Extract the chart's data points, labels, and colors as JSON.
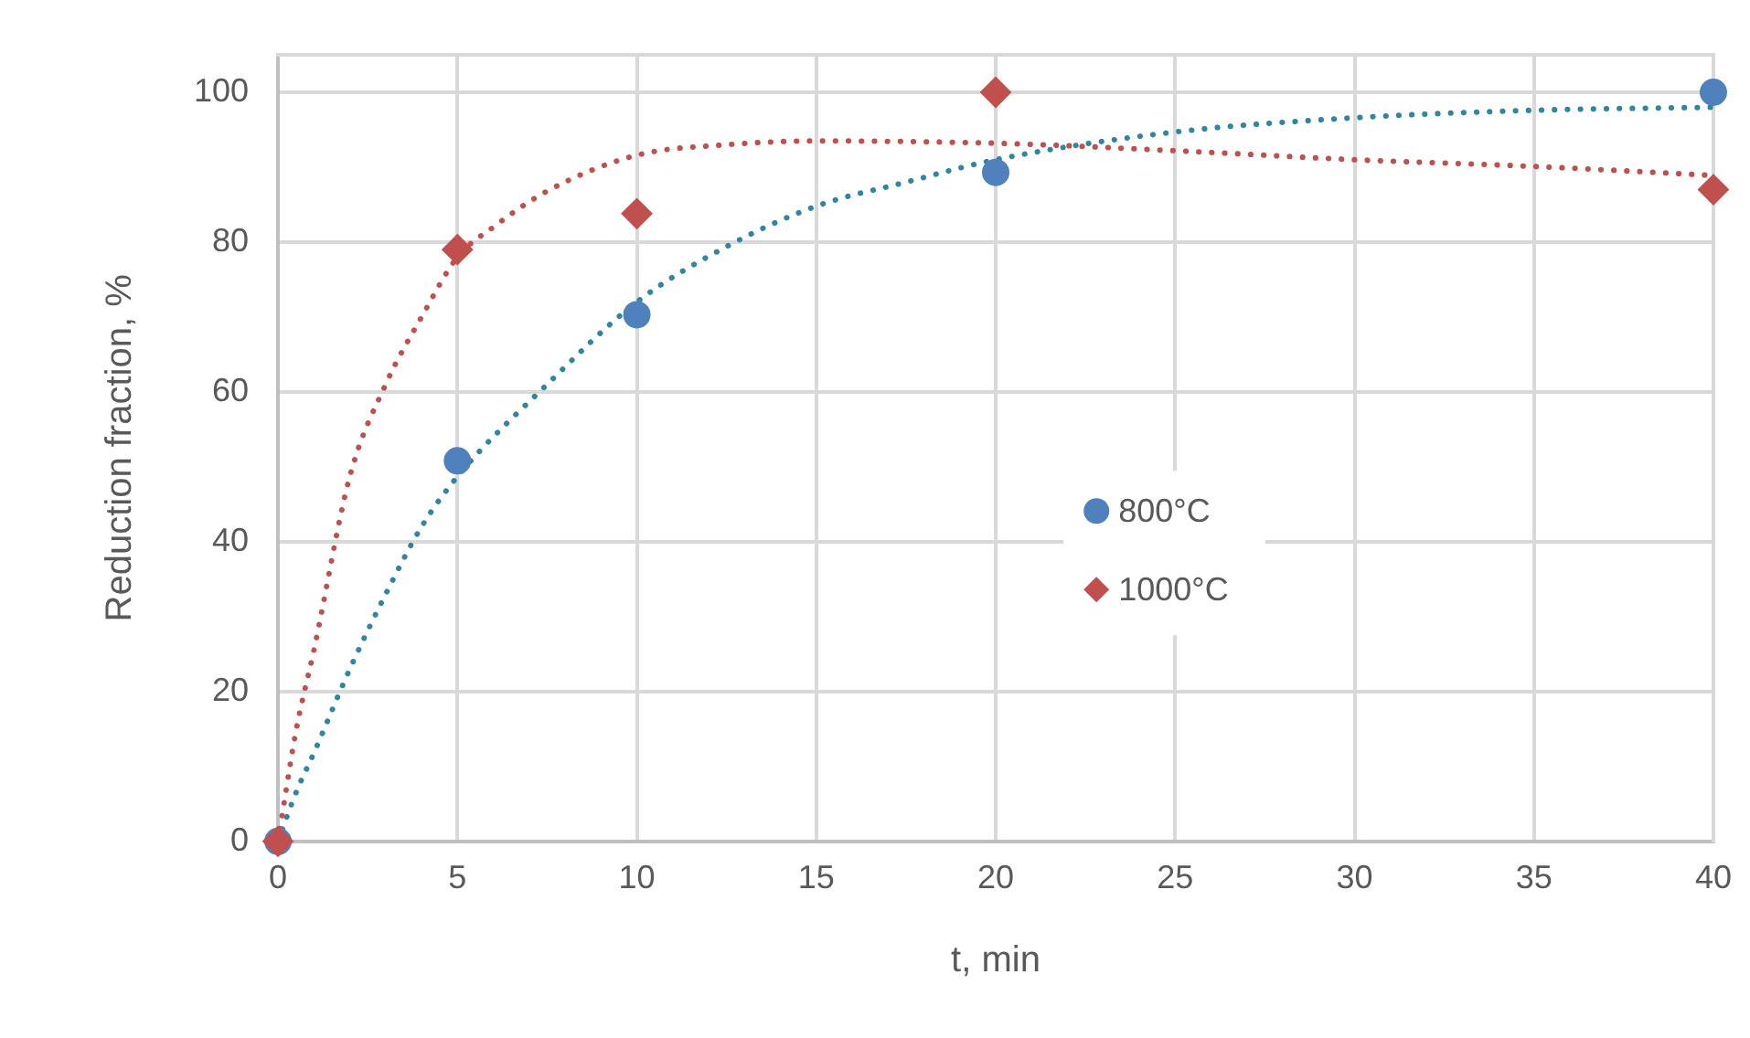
{
  "chart_data": {
    "type": "scatter",
    "xlabel": "t, min",
    "ylabel": "Reduction fraction, %",
    "xlim": [
      0,
      40
    ],
    "xticks": [
      0,
      5,
      10,
      15,
      20,
      25,
      30,
      35,
      40
    ],
    "ylim": [
      0,
      105
    ],
    "yticks": [
      0,
      20,
      40,
      60,
      80,
      100
    ],
    "grid": true,
    "legend": "right",
    "series": [
      {
        "name": "800°C",
        "type": "scatter",
        "marker": "circle",
        "color": "#4f81bd",
        "x": [
          0,
          5,
          10,
          20,
          40
        ],
        "values": [
          0,
          50.8,
          70.3,
          89.3,
          100
        ]
      },
      {
        "name": "1000°C",
        "type": "scatter",
        "marker": "diamond",
        "color": "#c0504d",
        "x": [
          0,
          5,
          10,
          20,
          40
        ],
        "values": [
          0,
          79,
          83.8,
          100,
          87
        ]
      },
      {
        "type": "line",
        "marker": "none",
        "line_style": "dotted",
        "color": "#c0504d",
        "x": [
          0,
          0.5,
          1,
          2,
          3,
          4,
          5,
          6,
          7.5,
          10,
          12.5,
          15,
          20,
          25,
          30,
          35,
          40
        ],
        "values": [
          0,
          14.7,
          25.5,
          48.7,
          61,
          70,
          78,
          82,
          86.8,
          91.6,
          93,
          93.5,
          93.2,
          92.2,
          91,
          90.1,
          88.9
        ]
      },
      {
        "type": "line",
        "marker": "none",
        "line_style": "dotted",
        "color": "#31859c",
        "x": [
          0,
          0.5,
          1,
          2,
          3,
          4,
          5,
          7.5,
          10,
          12.5,
          15,
          17.5,
          20,
          25,
          30,
          35,
          40
        ],
        "values": [
          0,
          6.5,
          11.8,
          23,
          33,
          42,
          48.7,
          61,
          72,
          79.4,
          84.8,
          88,
          91,
          94.7,
          96.6,
          97.6,
          98
        ]
      }
    ]
  }
}
